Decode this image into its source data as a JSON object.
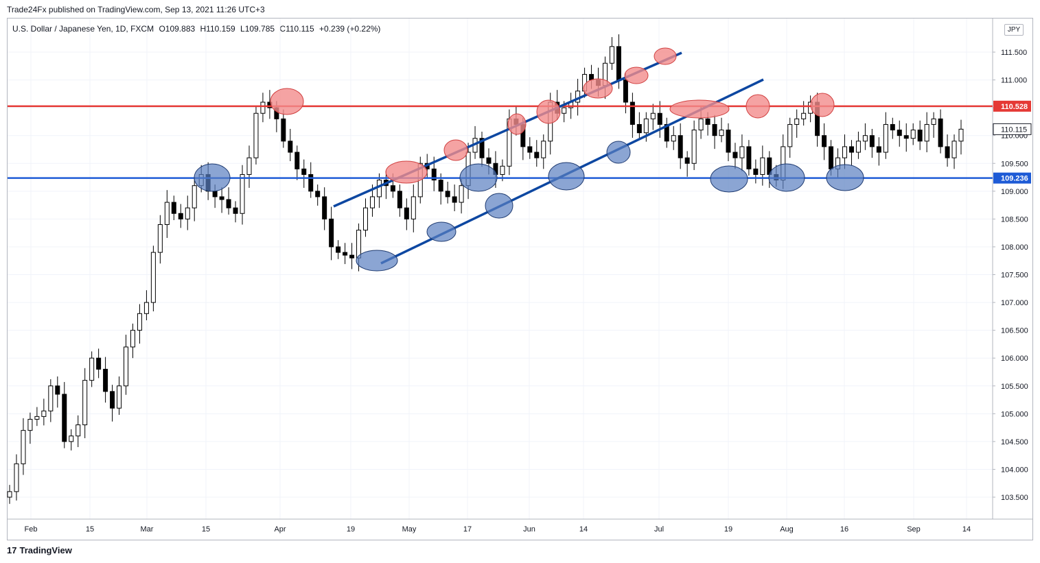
{
  "header": {
    "published": "Trade24Fx published on TradingView.com, Sep 13, 2021 11:26 UTC+3"
  },
  "legend": {
    "symbol": "U.S. Dollar / Japanese Yen, 1D, FXCM",
    "open": "O109.883",
    "high": "H110.159",
    "low": "L109.785",
    "close": "C110.115",
    "change": "+0.239 (+0.22%)"
  },
  "currency_badge": "JPY",
  "footer": {
    "brand": "TradingView",
    "logo_text": "17"
  },
  "colors": {
    "resistance": "#e53935",
    "support": "#1e5bd6",
    "channel": "#0d47a1",
    "highlight_red": "#f28c8c",
    "highlight_blue": "#5a7fc0",
    "up_candle": "#ffffff",
    "down_candle": "#000000"
  },
  "chart_data": {
    "type": "candlestick",
    "y_ticks": [
      "103.500",
      "104.000",
      "104.500",
      "105.000",
      "105.500",
      "106.000",
      "106.500",
      "107.000",
      "107.500",
      "108.000",
      "108.500",
      "109.000",
      "109.500",
      "110.000",
      "110.500",
      "111.000",
      "111.500"
    ],
    "ylim": [
      103.2,
      112.0
    ],
    "x_ticks": [
      "Feb",
      "15",
      "Mar",
      "15",
      "Apr",
      "19",
      "May",
      "17",
      "Jun",
      "14",
      "Jul",
      "19",
      "Aug",
      "16",
      "Sep",
      "14"
    ],
    "levels": [
      {
        "name": "resistance",
        "value": 110.528,
        "label": "110.528"
      },
      {
        "name": "support",
        "value": 109.236,
        "label": "109.236"
      }
    ],
    "last_price": {
      "value": 110.115,
      "label": "110.115"
    },
    "channel": {
      "upper": [
        [
          0,
          108.73
        ],
        [
          1,
          111.5
        ]
      ],
      "lower": [
        [
          0,
          107.7
        ],
        [
          1,
          110.97
        ]
      ]
    },
    "closes": [
      103.6,
      104.1,
      104.7,
      104.9,
      104.95,
      105.05,
      105.5,
      105.35,
      104.5,
      104.6,
      104.8,
      105.6,
      106.0,
      105.8,
      105.4,
      105.1,
      105.5,
      106.2,
      106.5,
      106.8,
      107.0,
      107.9,
      108.4,
      108.8,
      108.6,
      108.5,
      108.7,
      109.1,
      109.3,
      109.0,
      108.9,
      108.85,
      108.7,
      108.6,
      109.3,
      109.6,
      110.4,
      110.6,
      110.5,
      110.3,
      109.9,
      109.7,
      109.4,
      109.3,
      109.0,
      108.9,
      108.5,
      108.0,
      107.9,
      107.85,
      107.8,
      108.3,
      108.7,
      108.9,
      109.2,
      109.1,
      109.0,
      108.7,
      108.5,
      108.9,
      109.5,
      109.4,
      109.2,
      109.0,
      108.9,
      108.8,
      109.1,
      109.7,
      109.95,
      109.6,
      109.5,
      109.3,
      109.45,
      110.3,
      110.2,
      109.8,
      109.7,
      109.6,
      109.9,
      110.6,
      110.4,
      110.5,
      110.6,
      110.8,
      111.1,
      111.0,
      110.9,
      111.3,
      111.6,
      111.0,
      110.6,
      110.2,
      110.05,
      110.3,
      110.4,
      110.2,
      109.9,
      110.0,
      109.6,
      109.5,
      110.1,
      110.3,
      110.2,
      110.0,
      110.1,
      109.7,
      109.6,
      109.8,
      109.4,
      109.3,
      109.6,
      109.3,
      109.2,
      109.8,
      110.2,
      110.3,
      110.4,
      110.6,
      110.0,
      109.8,
      109.4,
      109.6,
      109.8,
      109.7,
      109.9,
      110.0,
      109.8,
      109.7,
      110.2,
      110.1,
      110.0,
      109.95,
      110.1,
      109.9,
      110.2,
      110.3,
      109.8,
      109.6,
      109.9,
      110.115
    ]
  }
}
